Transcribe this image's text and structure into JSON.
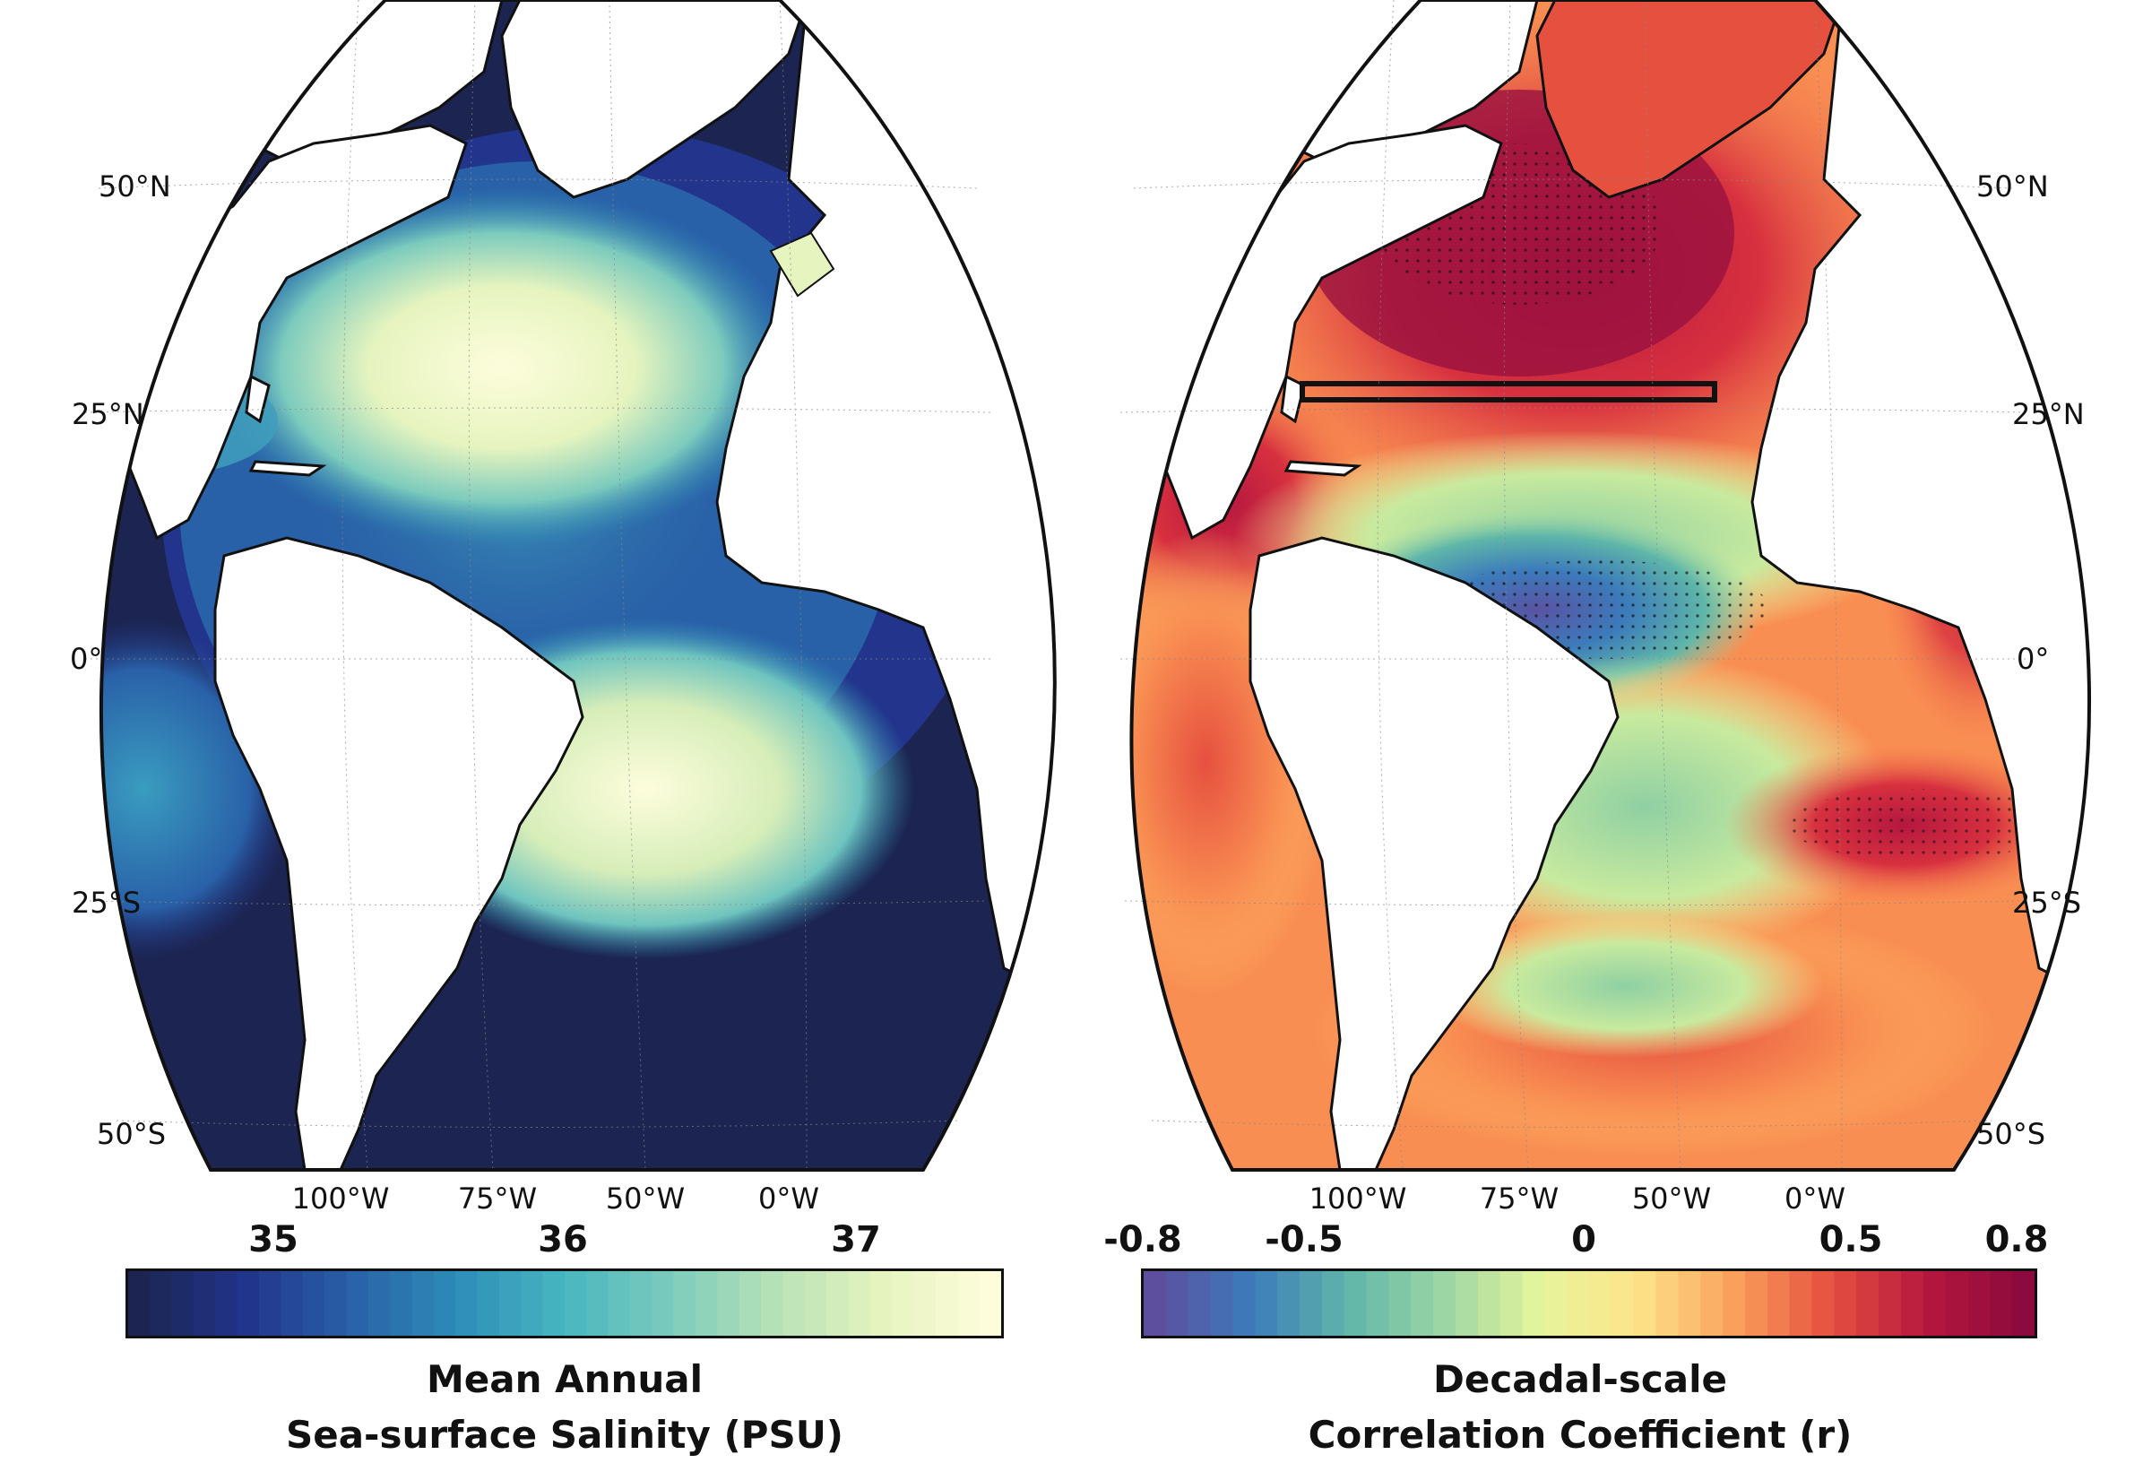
{
  "maps": [
    {
      "id": "salinity",
      "lat_labels_left": [
        "50°N",
        "25°N",
        "0°",
        "25°S",
        "50°S"
      ],
      "lon_labels": [
        "100°W",
        "75°W",
        "50°W",
        "0°W"
      ],
      "colorbar": {
        "ticks": [
          "35",
          "36",
          "37"
        ],
        "tick_values": [
          35,
          36,
          37
        ],
        "range": [
          34.75,
          37.25
        ],
        "title_line1": "Mean Annual",
        "title_line2": "Sea-surface Salinity (PSU)",
        "colors": [
          "#1c2551",
          "#22348b",
          "#2961a8",
          "#2e8db8",
          "#48b6c0",
          "#7ccbbd",
          "#b8e2b7",
          "#e6f4bf",
          "#fdfddc"
        ]
      }
    },
    {
      "id": "correlation",
      "lat_labels_right": [
        "50°N",
        "25°N",
        "0°",
        "25°S",
        "50°S"
      ],
      "lon_labels": [
        "100°W",
        "75°W",
        "50°W",
        "0°W"
      ],
      "colorbar": {
        "ticks": [
          "-0.8",
          "-0.5",
          "0",
          "0.5",
          "0.8"
        ],
        "tick_values": [
          -0.8,
          -0.5,
          0,
          0.5,
          0.8
        ],
        "range": [
          -0.8,
          0.8
        ],
        "title_line1": "Decadal-scale",
        "title_line2": "Correlation Coefficient (r)",
        "colors": [
          "#5d4f9e",
          "#3c7bbb",
          "#5fb6a9",
          "#9cd6a4",
          "#e6f59c",
          "#fde48a",
          "#f9a15c",
          "#e6503f",
          "#b5173f",
          "#8c0a3d"
        ]
      }
    }
  ]
}
